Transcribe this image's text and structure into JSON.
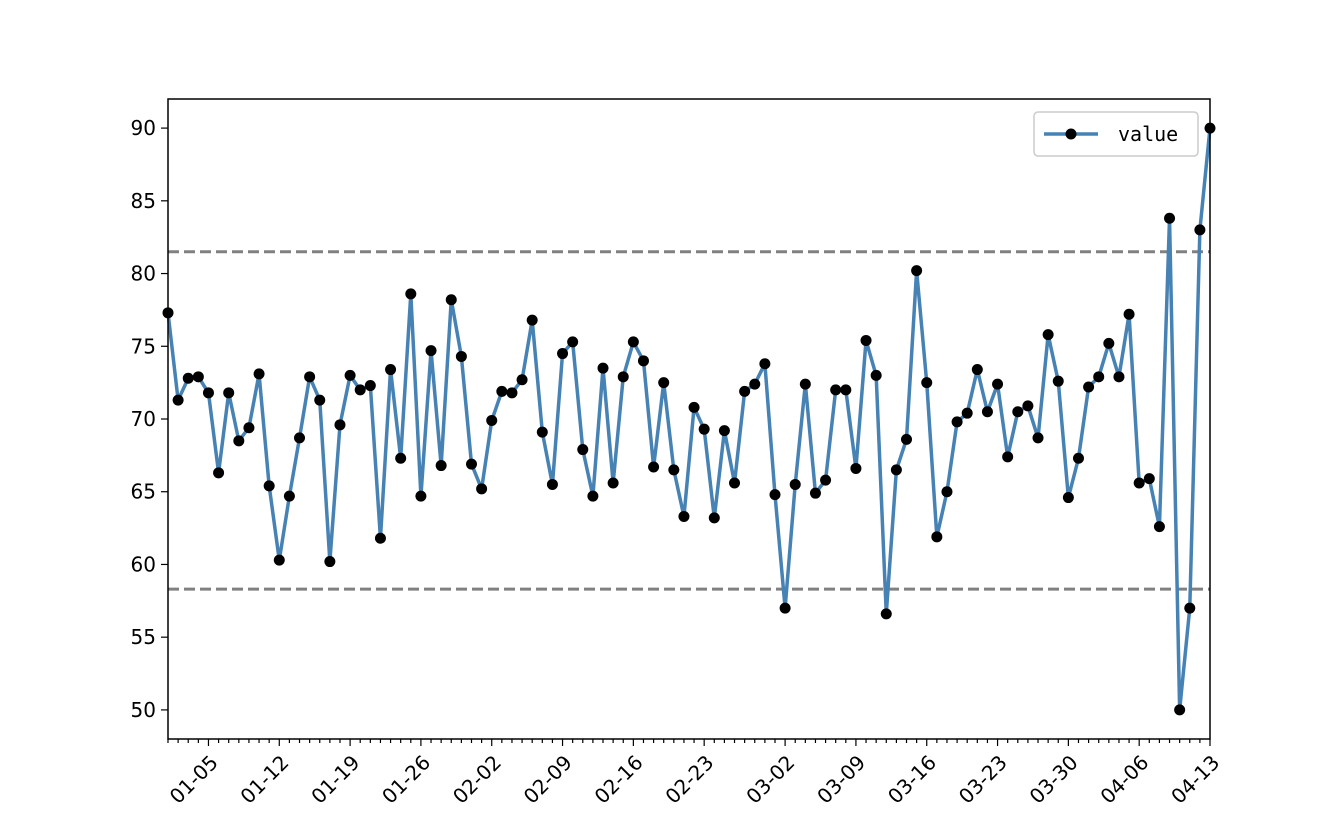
{
  "chart_data": {
    "type": "line",
    "x_start": "2024-01-01",
    "x": [
      "01-01",
      "01-02",
      "01-03",
      "01-04",
      "01-05",
      "01-06",
      "01-07",
      "01-08",
      "01-09",
      "01-10",
      "01-11",
      "01-12",
      "01-13",
      "01-14",
      "01-15",
      "01-16",
      "01-17",
      "01-18",
      "01-19",
      "01-20",
      "01-21",
      "01-22",
      "01-23",
      "01-24",
      "01-25",
      "01-26",
      "01-27",
      "01-28",
      "01-29",
      "01-30",
      "01-31",
      "02-01",
      "02-02",
      "02-03",
      "02-04",
      "02-05",
      "02-06",
      "02-07",
      "02-08",
      "02-09",
      "02-10",
      "02-11",
      "02-12",
      "02-13",
      "02-14",
      "02-15",
      "02-16",
      "02-17",
      "02-18",
      "02-19",
      "02-20",
      "02-21",
      "02-22",
      "02-23",
      "02-24",
      "02-25",
      "02-26",
      "02-27",
      "02-28",
      "02-29",
      "03-01",
      "03-02",
      "03-03",
      "03-04",
      "03-05",
      "03-06",
      "03-07",
      "03-08",
      "03-09",
      "03-10",
      "03-11",
      "03-12",
      "03-13",
      "03-14",
      "03-15",
      "03-16",
      "03-17",
      "03-18",
      "03-19",
      "03-20",
      "03-21",
      "03-22",
      "03-23",
      "03-24",
      "03-25",
      "03-26",
      "03-27",
      "03-28",
      "03-29",
      "03-30",
      "03-31",
      "04-01",
      "04-02",
      "04-03",
      "04-04",
      "04-05",
      "04-06",
      "04-07",
      "04-08",
      "04-09",
      "04-10",
      "04-11",
      "04-12",
      "04-13"
    ],
    "series": [
      {
        "name": "value",
        "color": "#4682b4",
        "marker_color": "#000000",
        "values": [
          77.3,
          71.3,
          72.8,
          72.9,
          71.8,
          66.3,
          71.8,
          68.5,
          69.4,
          73.1,
          65.4,
          60.3,
          64.7,
          68.7,
          72.9,
          71.3,
          60.2,
          69.6,
          73.0,
          72.0,
          72.3,
          61.8,
          73.4,
          67.3,
          78.6,
          64.7,
          74.7,
          66.8,
          78.2,
          74.3,
          66.9,
          65.2,
          69.9,
          71.9,
          71.8,
          72.7,
          76.8,
          69.1,
          65.5,
          74.5,
          75.3,
          67.9,
          64.7,
          73.5,
          65.6,
          72.9,
          75.3,
          74.0,
          66.7,
          72.5,
          66.5,
          63.3,
          70.8,
          69.3,
          63.2,
          69.2,
          65.6,
          71.9,
          72.4,
          73.8,
          64.8,
          57.0,
          65.5,
          72.4,
          64.9,
          65.8,
          72.0,
          72.0,
          66.6,
          75.4,
          73.0,
          56.6,
          66.5,
          68.6,
          80.2,
          72.5,
          61.9,
          65.0,
          69.8,
          70.4,
          73.4,
          70.5,
          72.4,
          67.4,
          70.5,
          70.9,
          68.7,
          75.8,
          72.6,
          64.6,
          67.3,
          72.2,
          72.9,
          75.2,
          72.9,
          77.2,
          65.6,
          65.9,
          62.6,
          83.8,
          50.0,
          57.0,
          83.0,
          90.0
        ]
      }
    ],
    "reference_lines": [
      {
        "y": 81.5,
        "color": "#808080",
        "style": "dashed"
      },
      {
        "y": 58.3,
        "color": "#808080",
        "style": "dashed"
      }
    ],
    "xticks": [
      "01-05",
      "01-12",
      "01-19",
      "01-26",
      "02-02",
      "02-09",
      "02-16",
      "02-23",
      "03-02",
      "03-09",
      "03-16",
      "03-23",
      "03-30",
      "04-06",
      "04-13"
    ],
    "yticks": [
      50,
      55,
      60,
      65,
      70,
      75,
      80,
      85,
      90
    ],
    "ylim": [
      48,
      92
    ],
    "title": "",
    "xlabel": "",
    "ylabel": "",
    "legend": {
      "placement": "top-right",
      "entries": [
        "value"
      ]
    },
    "grid": false
  }
}
